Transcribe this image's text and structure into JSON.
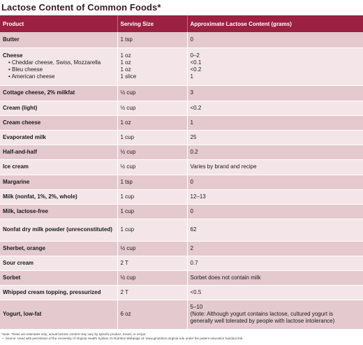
{
  "title": "Lactose Content of Common Foods*",
  "headers": [
    "Product",
    "Serving Size",
    "Approximate Lactose Content (grams)"
  ],
  "rows": [
    {
      "product": "Butter",
      "serving": "1 tsp",
      "lactose": "0",
      "h": 22
    },
    {
      "product": "Cheese",
      "subitems": [
        "Cheddar cheese, Swiss, Mozzarella",
        "Bleu cheese",
        "American cheese"
      ],
      "serving_lines": [
        "1 oz",
        "1 oz",
        "1 oz",
        "1 slice"
      ],
      "lactose_lines": [
        "0–2",
        "<0.1",
        "<0.2",
        "1"
      ],
      "h": 54
    },
    {
      "product": "Cottage cheese, 2% milkfat",
      "serving": "½ cup",
      "lactose": "3",
      "h": 22
    },
    {
      "product": "Cream (light)",
      "serving": "½ cup",
      "lactose": "<0.2",
      "h": 21
    },
    {
      "product": "Cream cheese",
      "serving": "1 oz",
      "lactose": "1",
      "h": 21
    },
    {
      "product": "Evaporated milk",
      "serving": "1 cup",
      "lactose": "25",
      "h": 21
    },
    {
      "product": "Half-and-half",
      "serving": "½ cup",
      "lactose": "0.2",
      "h": 21
    },
    {
      "product": "Ice cream",
      "serving": "½ cup",
      "lactose": "Varies by brand and recipe",
      "h": 22
    },
    {
      "product": "Margarine",
      "serving": "1 tsp",
      "lactose": "0",
      "h": 21
    },
    {
      "product": "Milk (nonfat, 1%, 2%, whole)",
      "serving": "1 cup",
      "lactose": "12–13",
      "h": 21
    },
    {
      "product": "Milk, lactose-free",
      "serving": "1 cup",
      "lactose": "0",
      "h": 21
    },
    {
      "product": "Nonfat dry milk powder (unreconstituted)",
      "serving": "1 cup",
      "lactose": "62",
      "h": 32
    },
    {
      "product": "Sherbet, orange",
      "serving": "½ cup",
      "lactose": "2",
      "h": 21
    },
    {
      "product": "Sour cream",
      "serving": "2 T",
      "lactose": "0.7",
      "h": 21
    },
    {
      "product": "Sorbet",
      "serving": "½ cup",
      "lactose": "Sorbet does not contain milk",
      "h": 21
    },
    {
      "product": "Whipped cream topping, pressurized",
      "serving": "2 T",
      "lactose": "<0.5",
      "h": 21
    },
    {
      "product": "Yogurt, low-fat",
      "serving": "6 oz",
      "lactose_lines": [
        "5–10",
        "(Note: Although yogurt contains lactose, cultured yogurt is",
        "generally well tolerated by people with lactose intolerance)"
      ],
      "h": 42
    }
  ],
  "footnotes": [
    "*Note: These are estimates only; actual lactose content may vary by specific product, brand, or recipe.",
    "— Source: Used with permission of the University of Virginia Health System GI Nutrition Webpage at: www.ginutrition.virginia.edu under the patient education handout link."
  ]
}
